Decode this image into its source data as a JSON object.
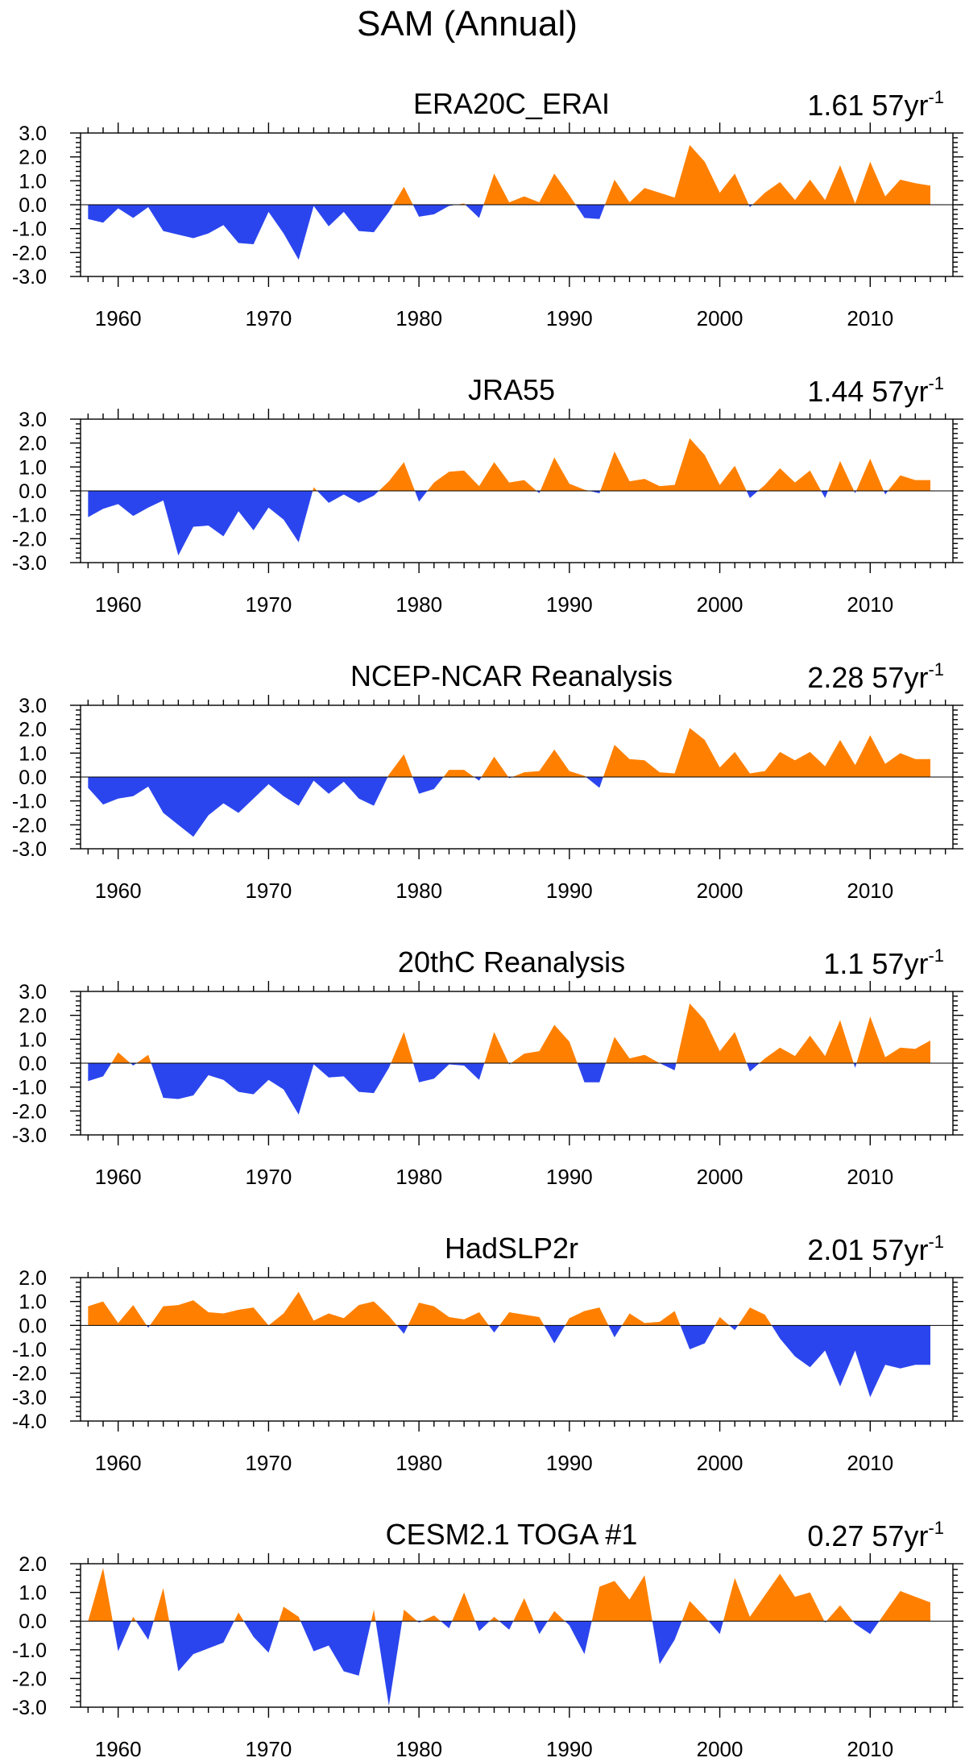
{
  "title": "SAM (Annual)",
  "colors": {
    "positive": "#FF8000",
    "negative": "#2B45EE",
    "axis": "#000000"
  },
  "chart_data": [
    {
      "type": "area",
      "title": "ERA20C_ERAI",
      "trend_value": "1.61",
      "trend_unit": "57yr",
      "trend_exponent": "-1",
      "x_start": 1958,
      "xlim": [
        1957.5,
        2015.5
      ],
      "xticks": [
        1960,
        1970,
        1980,
        1990,
        2000,
        2010
      ],
      "ylim": [
        -3,
        3
      ],
      "yticks": [
        3,
        2,
        1,
        0,
        -1,
        -2,
        -3
      ],
      "ytick_labels": [
        "3.0",
        "2.0",
        "1.0",
        "0.0",
        "-1.0",
        "-2.0",
        "-3.0"
      ],
      "values": [
        -0.6,
        -0.75,
        -0.15,
        -0.55,
        -0.1,
        -1.1,
        -1.25,
        -1.4,
        -1.2,
        -0.85,
        -1.6,
        -1.65,
        -0.3,
        -1.2,
        -2.3,
        -0.05,
        -0.9,
        -0.3,
        -1.1,
        -1.15,
        -0.3,
        0.75,
        -0.5,
        -0.4,
        -0.05,
        0.05,
        -0.55,
        1.3,
        0.1,
        0.35,
        0.1,
        1.3,
        0.4,
        -0.55,
        -0.6,
        1.05,
        0.1,
        0.7,
        0.5,
        0.3,
        2.5,
        1.8,
        0.5,
        1.3,
        -0.1,
        0.5,
        0.95,
        0.2,
        1.05,
        0.2,
        1.65,
        0.05,
        1.8,
        0.35,
        1.05,
        0.9,
        0.8
      ]
    },
    {
      "type": "area",
      "title": "JRA55",
      "trend_value": "1.44",
      "trend_unit": "57yr",
      "trend_exponent": "-1",
      "x_start": 1958,
      "xlim": [
        1957.5,
        2015.5
      ],
      "xticks": [
        1960,
        1970,
        1980,
        1990,
        2000,
        2010
      ],
      "ylim": [
        -3,
        3
      ],
      "yticks": [
        3,
        2,
        1,
        0,
        -1,
        -2,
        -3
      ],
      "ytick_labels": [
        "3.0",
        "2.0",
        "1.0",
        "0.0",
        "-1.0",
        "-2.0",
        "-3.0"
      ],
      "values": [
        -1.1,
        -0.75,
        -0.55,
        -1.05,
        -0.7,
        -0.4,
        -2.7,
        -1.5,
        -1.45,
        -1.9,
        -0.85,
        -1.65,
        -0.7,
        -1.2,
        -2.15,
        0.15,
        -0.5,
        -0.15,
        -0.5,
        -0.2,
        0.4,
        1.2,
        -0.45,
        0.35,
        0.8,
        0.85,
        0.2,
        1.2,
        0.35,
        0.45,
        -0.1,
        1.4,
        0.3,
        0.05,
        -0.1,
        1.65,
        0.4,
        0.5,
        0.2,
        0.25,
        2.2,
        1.5,
        0.25,
        1.05,
        -0.3,
        0.25,
        0.95,
        0.35,
        0.85,
        -0.3,
        1.25,
        -0.1,
        1.35,
        -0.15,
        0.65,
        0.45,
        0.45
      ]
    },
    {
      "type": "area",
      "title": "NCEP-NCAR Reanalysis",
      "trend_value": "2.28",
      "trend_unit": "57yr",
      "trend_exponent": "-1",
      "x_start": 1958,
      "xlim": [
        1957.5,
        2015.5
      ],
      "xticks": [
        1960,
        1970,
        1980,
        1990,
        2000,
        2010
      ],
      "ylim": [
        -3,
        3
      ],
      "yticks": [
        3,
        2,
        1,
        0,
        -1,
        -2,
        -3
      ],
      "ytick_labels": [
        "3.0",
        "2.0",
        "1.0",
        "0.0",
        "-1.0",
        "-2.0",
        "-3.0"
      ],
      "values": [
        -0.45,
        -1.15,
        -0.9,
        -0.8,
        -0.4,
        -1.5,
        -2.0,
        -2.5,
        -1.6,
        -1.1,
        -1.5,
        -0.9,
        -0.3,
        -0.8,
        -1.2,
        -0.15,
        -0.7,
        -0.2,
        -0.9,
        -1.2,
        0.1,
        0.95,
        -0.7,
        -0.5,
        0.3,
        0.3,
        -0.15,
        0.85,
        -0.05,
        0.2,
        0.25,
        1.15,
        0.25,
        0.05,
        -0.45,
        1.35,
        0.75,
        0.7,
        0.2,
        0.15,
        2.05,
        1.55,
        0.4,
        1.05,
        0.15,
        0.25,
        1.05,
        0.7,
        1.05,
        0.45,
        1.55,
        0.5,
        1.75,
        0.55,
        1.0,
        0.75,
        0.75
      ]
    },
    {
      "type": "area",
      "title": "20thC Reanalysis",
      "trend_value": "1.1",
      "trend_unit": "57yr",
      "trend_exponent": "-1",
      "x_start": 1958,
      "xlim": [
        1957.5,
        2015.5
      ],
      "xticks": [
        1960,
        1970,
        1980,
        1990,
        2000,
        2010
      ],
      "ylim": [
        -3,
        3
      ],
      "yticks": [
        3,
        2,
        1,
        0,
        -1,
        -2,
        -3
      ],
      "ytick_labels": [
        "3.0",
        "2.0",
        "1.0",
        "0.0",
        "-1.0",
        "-2.0",
        "-3.0"
      ],
      "values": [
        -0.75,
        -0.55,
        0.45,
        -0.1,
        0.35,
        -1.45,
        -1.5,
        -1.35,
        -0.5,
        -0.7,
        -1.2,
        -1.3,
        -0.7,
        -1.1,
        -2.15,
        -0.05,
        -0.6,
        -0.55,
        -1.2,
        -1.25,
        -0.2,
        1.3,
        -0.8,
        -0.65,
        -0.05,
        -0.1,
        -0.7,
        1.3,
        -0.05,
        0.4,
        0.5,
        1.6,
        0.9,
        -0.8,
        -0.8,
        1.1,
        0.2,
        0.35,
        0.0,
        -0.3,
        2.5,
        1.8,
        0.5,
        1.3,
        -0.35,
        0.2,
        0.65,
        0.3,
        1.15,
        0.3,
        1.8,
        -0.2,
        1.95,
        0.25,
        0.65,
        0.6,
        0.95
      ]
    },
    {
      "type": "area",
      "title": "HadSLP2r",
      "trend_value": "2.01",
      "trend_unit": "57yr",
      "trend_exponent": "-1",
      "x_start": 1958,
      "xlim": [
        1957.5,
        2015.5
      ],
      "xticks": [
        1960,
        1970,
        1980,
        1990,
        2000,
        2010
      ],
      "ylim": [
        -4,
        2
      ],
      "yticks": [
        2,
        1,
        0,
        -1,
        -2,
        -3,
        -4
      ],
      "ytick_labels": [
        "2.0",
        "1.0",
        "0.0",
        "-1.0",
        "-2.0",
        "-3.0",
        "-4.0"
      ],
      "values": [
        0.8,
        1.0,
        0.1,
        0.85,
        -0.1,
        0.8,
        0.85,
        1.05,
        0.55,
        0.5,
        0.65,
        0.75,
        0.0,
        0.5,
        1.4,
        0.2,
        0.5,
        0.3,
        0.85,
        1.0,
        0.4,
        -0.35,
        0.95,
        0.8,
        0.35,
        0.25,
        0.55,
        -0.3,
        0.55,
        0.45,
        0.35,
        -0.75,
        0.3,
        0.6,
        0.75,
        -0.5,
        0.5,
        0.1,
        0.15,
        0.6,
        -1.0,
        -0.75,
        0.35,
        -0.2,
        0.75,
        0.45,
        -0.55,
        -1.3,
        -1.75,
        -1.05,
        -2.55,
        -1.05,
        -3.0,
        -1.65,
        -1.8,
        -1.65,
        -1.65
      ]
    },
    {
      "type": "area",
      "title": "CESM2.1 TOGA #1",
      "trend_value": "0.27",
      "trend_unit": "57yr",
      "trend_exponent": "-1",
      "x_start": 1958,
      "xlim": [
        1957.5,
        2015.5
      ],
      "xticks": [
        1960,
        1970,
        1980,
        1990,
        2000,
        2010
      ],
      "ylim": [
        -3,
        2
      ],
      "yticks": [
        2,
        1,
        0,
        -1,
        -2,
        -3
      ],
      "ytick_labels": [
        "2.0",
        "1.0",
        "0.0",
        "-1.0",
        "-2.0",
        "-3.0"
      ],
      "values": [
        0.0,
        1.85,
        -1.05,
        0.15,
        -0.65,
        1.15,
        -1.75,
        -1.15,
        -0.95,
        -0.75,
        0.3,
        -0.55,
        -1.1,
        0.5,
        0.15,
        -1.05,
        -0.85,
        -1.75,
        -1.9,
        0.4,
        -2.95,
        0.4,
        -0.05,
        0.2,
        -0.25,
        1.0,
        -0.35,
        0.15,
        -0.3,
        0.8,
        -0.45,
        0.35,
        -0.15,
        -1.15,
        1.2,
        1.4,
        0.75,
        1.6,
        -1.5,
        -0.65,
        0.7,
        0.15,
        -0.45,
        1.5,
        0.15,
        0.9,
        1.65,
        0.85,
        1.0,
        -0.05,
        0.55,
        -0.1,
        -0.45,
        0.3,
        1.05,
        0.85,
        0.65
      ]
    }
  ]
}
